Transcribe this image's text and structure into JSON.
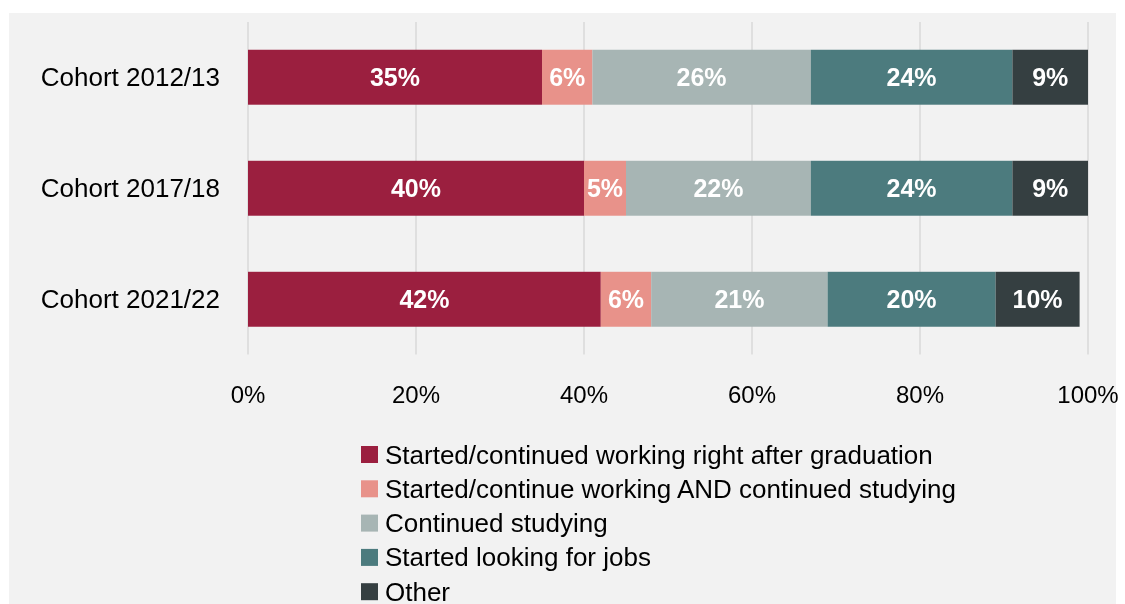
{
  "chart_data": {
    "type": "bar",
    "orientation": "horizontal",
    "stacked": true,
    "categories": [
      "Cohort 2012/13",
      "Cohort 2017/18",
      "Cohort 2021/22"
    ],
    "series": [
      {
        "name": "Started/continued working right after graduation",
        "color": "#9b1f3f",
        "values": [
          35,
          40,
          42
        ],
        "value_labels": [
          "35%",
          "40%",
          "42%"
        ]
      },
      {
        "name": "Started/continue working AND continued studying",
        "color": "#e8928a",
        "values": [
          6,
          5,
          6
        ],
        "value_labels": [
          "6%",
          "5%",
          "6%"
        ]
      },
      {
        "name": "Continued studying",
        "color": "#a7b5b4",
        "values": [
          26,
          22,
          21
        ],
        "value_labels": [
          "26%",
          "22%",
          "21%"
        ]
      },
      {
        "name": "Started looking for jobs",
        "color": "#4c7b7e",
        "values": [
          24,
          24,
          20
        ],
        "value_labels": [
          "24%",
          "24%",
          "20%"
        ]
      },
      {
        "name": "Other",
        "color": "#353f41",
        "values": [
          9,
          9,
          10
        ],
        "value_labels": [
          "9%",
          "9%",
          "10%"
        ]
      }
    ],
    "xlim": [
      0,
      100
    ],
    "xticks": [
      {
        "value": 0,
        "label": "0%"
      },
      {
        "value": 20,
        "label": "20%"
      },
      {
        "value": 40,
        "label": "40%"
      },
      {
        "value": 60,
        "label": "60%"
      },
      {
        "value": 80,
        "label": "80%"
      },
      {
        "value": 100,
        "label": "100%"
      }
    ],
    "grid": "x",
    "legend": "bottom"
  }
}
